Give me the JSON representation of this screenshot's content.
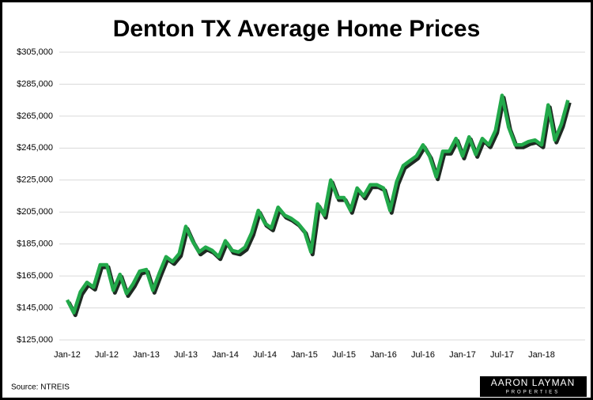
{
  "chart_data": {
    "type": "line",
    "title": "Denton TX Average Home Prices",
    "source": "Source: NTREIS",
    "logo": "AARON LAYMAN",
    "logo_subtitle": "PROPERTIES",
    "categories": [
      "Jan-12",
      null,
      null,
      null,
      null,
      null,
      "Jul-12",
      null,
      null,
      null,
      null,
      null,
      "Jan-13",
      null,
      null,
      null,
      null,
      null,
      "Jul-13",
      null,
      null,
      null,
      null,
      null,
      "Jan-14",
      null,
      null,
      null,
      null,
      null,
      "Jul-14",
      null,
      null,
      null,
      null,
      null,
      "Jan-15",
      null,
      null,
      null,
      null,
      null,
      "Jul-15",
      null,
      null,
      null,
      null,
      null,
      "Jan-16",
      null,
      null,
      null,
      null,
      null,
      "Jul-16",
      null,
      null,
      null,
      null,
      null,
      "Jan-17",
      null,
      null,
      null,
      null,
      null,
      "Jul-17",
      null,
      null,
      null,
      null,
      null,
      "Jan-18",
      null,
      null,
      null,
      null
    ],
    "series": [
      {
        "name": "Average Home Price",
        "color": "#22a94a",
        "values": [
          150000,
          142000,
          155000,
          161000,
          158000,
          172000,
          172000,
          156000,
          166000,
          154000,
          160000,
          168000,
          169000,
          156000,
          167000,
          177000,
          174000,
          179000,
          196000,
          187000,
          180000,
          183000,
          181000,
          177000,
          187000,
          181000,
          180000,
          183000,
          192000,
          206000,
          198000,
          195000,
          208000,
          203000,
          201000,
          198000,
          193000,
          180000,
          210000,
          203000,
          225000,
          214000,
          214000,
          206000,
          220000,
          215000,
          222000,
          222000,
          220000,
          206000,
          224000,
          234000,
          237000,
          240000,
          247000,
          240000,
          227000,
          243000,
          243000,
          251000,
          240000,
          252000,
          241000,
          251000,
          247000,
          256000,
          278000,
          258000,
          247000,
          247000,
          249000,
          250000,
          247000,
          272000,
          250000,
          260000,
          275000
        ]
      }
    ],
    "ylim": [
      125000,
      305000
    ],
    "yticks": [
      {
        "value": 125000,
        "label": "$125,000"
      },
      {
        "value": 145000,
        "label": "$145,000"
      },
      {
        "value": 165000,
        "label": "$165,000"
      },
      {
        "value": 185000,
        "label": "$185,000"
      },
      {
        "value": 205000,
        "label": "$205,000"
      },
      {
        "value": 225000,
        "label": "$225,000"
      },
      {
        "value": 245000,
        "label": "$245,000"
      },
      {
        "value": 265000,
        "label": "$265,000"
      },
      {
        "value": 285000,
        "label": "$285,000"
      },
      {
        "value": 305000,
        "label": "$305,000"
      }
    ],
    "grid": true
  }
}
